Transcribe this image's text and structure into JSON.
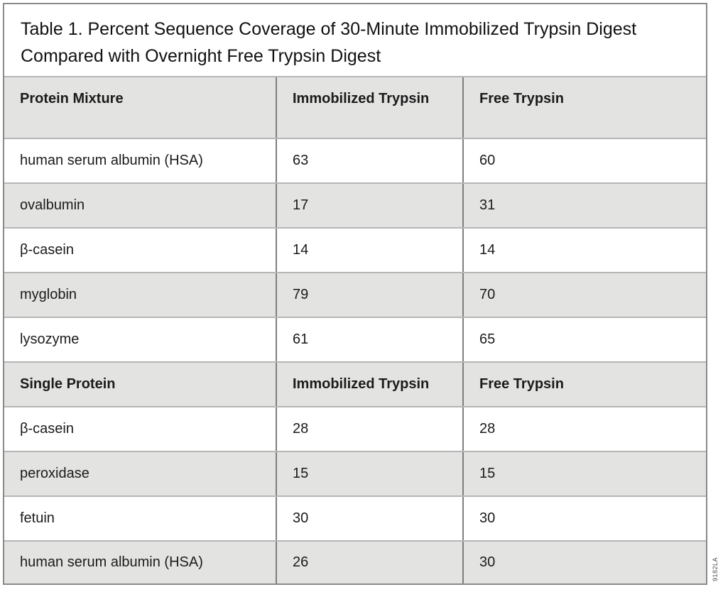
{
  "caption": "Table 1. Percent Sequence Coverage of 30-Minute Immobilized Trypsin Digest Compared with Overnight Free Trypsin Digest",
  "figure_code": "9182LA",
  "colors": {
    "row_alternate": "#e3e3e2",
    "grid_vertical": "#7f7f7f",
    "grid_horizontal": "#b6b6b6",
    "frame_border": "#8a8a8a"
  },
  "table": {
    "sections": [
      {
        "header": [
          "Protein Mixture",
          "Immobilized Trypsin",
          "Free Trypsin"
        ],
        "rows": [
          [
            "human serum albumin (HSA)",
            "63",
            "60"
          ],
          [
            "ovalbumin",
            "17",
            "31"
          ],
          [
            "β-casein",
            "14",
            "14"
          ],
          [
            "myglobin",
            "79",
            "70"
          ],
          [
            "lysozyme",
            "61",
            "65"
          ]
        ]
      },
      {
        "header": [
          "Single Protein",
          "Immobilized Trypsin",
          "Free Trypsin"
        ],
        "rows": [
          [
            "β-casein",
            "28",
            "28"
          ],
          [
            "peroxidase",
            "15",
            "15"
          ],
          [
            "fetuin",
            "30",
            "30"
          ],
          [
            "human serum albumin (HSA)",
            "26",
            "30"
          ]
        ]
      }
    ]
  }
}
